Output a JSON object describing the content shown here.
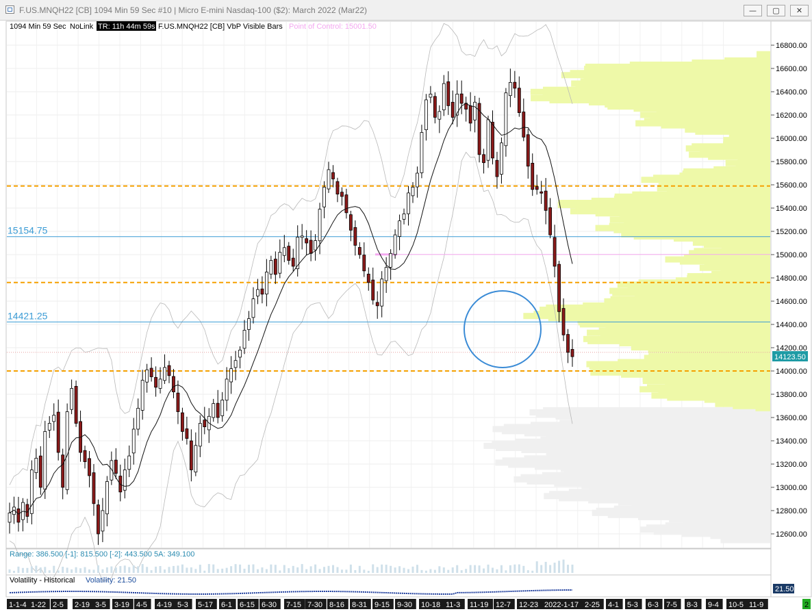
{
  "window": {
    "title": "F.US.MNQH22 [CB]  1094 Min 59 Sec   #10 | Micro E-mini Nasdaq-100 ($2): March 2022 (Mar22)",
    "minimize_label": "—",
    "maximize_label": "▢",
    "close_label": "✕"
  },
  "header": {
    "interval": "1094 Min 59 Sec",
    "link": "NoLink",
    "timer": "TR: 11h 44m 59s",
    "study": "F.US.MNQH22 [CB] VbP Visible Bars",
    "poc_label": "Point of Control: 15001.50"
  },
  "colors": {
    "profile": "#eef9a8",
    "profile_gray": "#f0f0f0",
    "up": "#ffffff",
    "down": "#8b1a1a",
    "orange_dash": "#f5a000",
    "blue_line": "#3a9bd5",
    "circle": "#3a8bd6",
    "price_badge": "#1e9ba5",
    "poc": "#f4a8f0"
  },
  "chart_data": {
    "type": "candlestick",
    "symbol": "F.US.MNQH22 [CB]",
    "ylim": [
      12500,
      16900
    ],
    "y_ticks": [
      "16800.00",
      "16600.00",
      "16400.00",
      "16200.00",
      "16000.00",
      "15800.00",
      "15600.00",
      "15400.00",
      "15200.00",
      "15000.00",
      "14800.00",
      "14600.00",
      "14400.00",
      "14200.00",
      "14000.00",
      "13800.00",
      "13600.00",
      "13400.00",
      "13200.00",
      "13000.00",
      "12800.00",
      "12600.00"
    ],
    "x_labels": [
      "1-1-4",
      "1-22",
      "2-5",
      "2-19",
      "3-5",
      "3-19",
      "4-5",
      "4-19",
      "5-3",
      "5-17",
      "6-1",
      "6-15",
      "6-30",
      "7-15",
      "7-30",
      "8-16",
      "8-31",
      "9-15",
      "9-30",
      "10-18",
      "11-3",
      "11-19",
      "12-7",
      "12-23",
      "2022-1-17",
      "2-25",
      "4-1",
      "5-3",
      "6-3",
      "7-5",
      "8-3",
      "9-4",
      "10-5",
      "11-9",
      "2"
    ],
    "close_series": [
      12780,
      12830,
      12700,
      12870,
      12750,
      13150,
      13250,
      13000,
      13480,
      13550,
      13620,
      13300,
      13000,
      13650,
      13850,
      13550,
      13300,
      13220,
      13100,
      12860,
      12600,
      12800,
      13050,
      13230,
      13120,
      12960,
      13150,
      13270,
      13500,
      13680,
      13920,
      14010,
      13950,
      13860,
      13930,
      14030,
      13960,
      13820,
      13650,
      13480,
      13420,
      13150,
      13360,
      13550,
      13520,
      13610,
      13720,
      13600,
      13750,
      13930,
      14020,
      14090,
      14180,
      14350,
      14450,
      14620,
      14700,
      14660,
      14850,
      14950,
      14830,
      15020,
      15060,
      14950,
      14900,
      15150,
      15160,
      15100,
      15010,
      15120,
      15390,
      15580,
      15730,
      15650,
      15520,
      15500,
      15360,
      15210,
      15080,
      15000,
      14860,
      14760,
      14610,
      14560,
      14790,
      14890,
      15010,
      15170,
      15290,
      15350,
      15530,
      15580,
      15700,
      16050,
      16330,
      16380,
      16180,
      16230,
      16470,
      16280,
      16180,
      16380,
      16300,
      16250,
      16130,
      16310,
      15860,
      15790,
      16160,
      15830,
      15670,
      15960,
      16390,
      16480,
      16430,
      16220,
      16010,
      15760,
      15560,
      15560,
      15530,
      15380,
      15170,
      14900,
      14510,
      14310,
      14160,
      14123
    ],
    "horizontal_levels": [
      {
        "label": "15154.75",
        "value": 15154.75,
        "style": "solid"
      },
      {
        "label": "14421.25",
        "value": 14421.25,
        "style": "solid"
      }
    ],
    "dashed_levels": [
      15590,
      14760,
      14000
    ],
    "last_price": "14123.50",
    "poc_value": 15001.5
  },
  "footer": {
    "range_text": "Range: 386.500  [-1]: 815.500  [-2]: 443.500  5A: 349.100",
    "vol_title": "Volatility - Historical",
    "vol_value_text": "Volatility: 21.50",
    "vol_badge": "21.50"
  }
}
